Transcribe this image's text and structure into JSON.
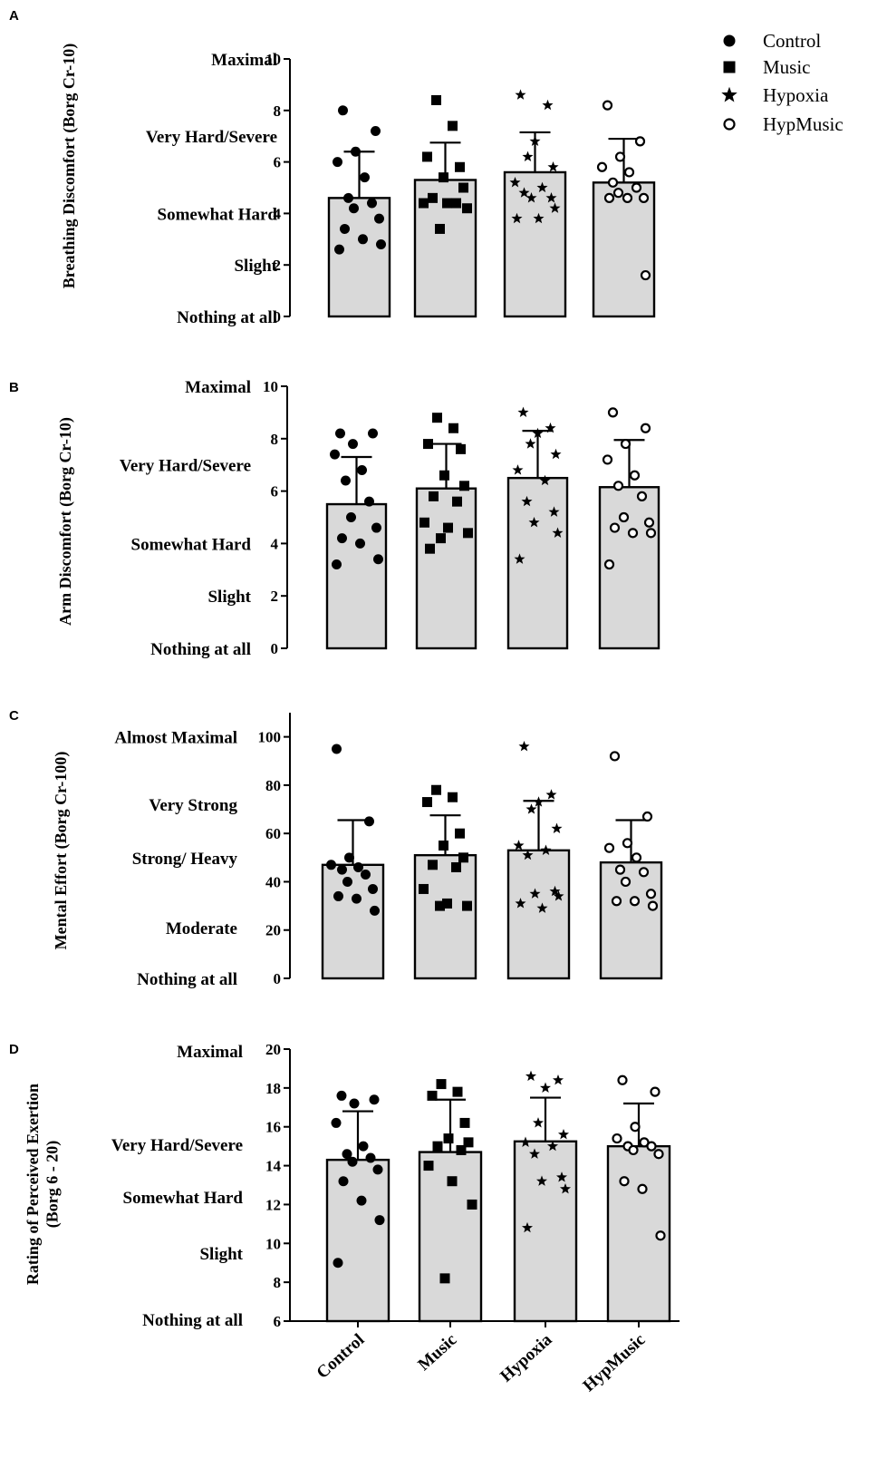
{
  "legend": {
    "placement": "top-right",
    "items": [
      {
        "label": "Control",
        "marker": "circle-filled"
      },
      {
        "label": "Music",
        "marker": "square-filled"
      },
      {
        "label": "Hypoxia",
        "marker": "star-filled"
      },
      {
        "label": "HypMusic",
        "marker": "circle-open"
      }
    ]
  },
  "chart_data": [
    {
      "type": "bar",
      "panel": "A",
      "ylabel": "Breathing Discomfort (Borg Cr-10)",
      "xlabel": "",
      "ylim": [
        0,
        10
      ],
      "yticks": [
        0,
        2,
        4,
        6,
        8,
        10
      ],
      "scale_labels": [
        {
          "value": 10,
          "label": "Maximal"
        },
        {
          "value": 7,
          "label": "Very Hard/Severe"
        },
        {
          "value": 4,
          "label": "Somewhat Hard"
        },
        {
          "value": 2,
          "label": "Slight"
        },
        {
          "value": 0,
          "label": "Nothing at all"
        }
      ],
      "categories": [
        "Control",
        "Music",
        "Hypoxia",
        "HypMusic"
      ],
      "show_category_labels": false,
      "bar_color": "#d9d9d9",
      "means": [
        4.6,
        5.3,
        5.6,
        5.2
      ],
      "sd": [
        1.8,
        1.45,
        1.55,
        1.7
      ],
      "points": [
        [
          8.0,
          7.2,
          6.4,
          6.0,
          5.4,
          4.6,
          4.4,
          4.2,
          3.8,
          3.4,
          3.0,
          2.8,
          2.6
        ],
        [
          8.4,
          7.4,
          6.2,
          5.8,
          5.4,
          5.0,
          4.6,
          4.4,
          4.4,
          4.4,
          4.2,
          3.4
        ],
        [
          8.6,
          8.2,
          6.8,
          6.2,
          5.8,
          5.2,
          5.0,
          4.8,
          4.6,
          4.6,
          4.2,
          3.8,
          3.8
        ],
        [
          8.2,
          6.8,
          6.2,
          5.8,
          5.6,
          5.2,
          5.0,
          4.8,
          4.6,
          4.6,
          4.6,
          1.6
        ]
      ]
    },
    {
      "type": "bar",
      "panel": "B",
      "ylabel": "Arm Discomfort (Borg Cr-10)",
      "xlabel": "",
      "ylim": [
        0,
        10
      ],
      "yticks": [
        0,
        2,
        4,
        6,
        8,
        10
      ],
      "scale_labels": [
        {
          "value": 10,
          "label": "Maximal"
        },
        {
          "value": 7,
          "label": "Very Hard/Severe"
        },
        {
          "value": 4,
          "label": "Somewhat Hard"
        },
        {
          "value": 2,
          "label": "Slight"
        },
        {
          "value": 0,
          "label": "Nothing at all"
        }
      ],
      "categories": [
        "Control",
        "Music",
        "Hypoxia",
        "HypMusic"
      ],
      "show_category_labels": false,
      "bar_color": "#d9d9d9",
      "means": [
        5.5,
        6.1,
        6.5,
        6.15
      ],
      "sd": [
        1.8,
        1.7,
        1.8,
        1.8
      ],
      "points": [
        [
          8.2,
          8.2,
          7.8,
          7.4,
          6.8,
          6.4,
          5.6,
          5.0,
          4.6,
          4.2,
          4.0,
          3.4,
          3.2
        ],
        [
          8.8,
          8.4,
          7.8,
          7.6,
          6.6,
          6.2,
          5.8,
          5.6,
          4.8,
          4.6,
          4.4,
          4.2,
          3.8
        ],
        [
          9.0,
          8.4,
          8.2,
          7.8,
          7.4,
          6.8,
          6.4,
          5.6,
          5.2,
          4.8,
          4.4,
          3.4
        ],
        [
          9.0,
          8.4,
          7.8,
          7.2,
          6.6,
          6.2,
          5.8,
          5.0,
          4.8,
          4.6,
          4.4,
          4.4,
          3.2
        ]
      ]
    },
    {
      "type": "bar",
      "panel": "C",
      "ylabel": "Mental Effort (Borg Cr-100)",
      "xlabel": "",
      "ylim": [
        0,
        110
      ],
      "yticks": [
        0,
        20,
        40,
        60,
        80,
        100
      ],
      "scale_labels": [
        {
          "value": 100,
          "label": "Almost Maximal"
        },
        {
          "value": 72,
          "label": "Very Strong"
        },
        {
          "value": 50,
          "label": "Strong/ Heavy"
        },
        {
          "value": 21,
          "label": "Moderate"
        },
        {
          "value": 0,
          "label": "Nothing at all"
        }
      ],
      "categories": [
        "Control",
        "Music",
        "Hypoxia",
        "HypMusic"
      ],
      "show_category_labels": false,
      "bar_color": "#d9d9d9",
      "means": [
        47,
        51,
        53,
        48
      ],
      "sd": [
        18.5,
        16.5,
        20.5,
        17.5
      ],
      "points": [
        [
          95,
          65,
          50,
          47,
          46,
          45,
          43,
          40,
          37,
          34,
          33,
          28
        ],
        [
          78,
          75,
          73,
          60,
          55,
          50,
          47,
          46,
          37,
          31,
          30,
          30
        ],
        [
          96,
          76,
          73,
          70,
          62,
          55,
          53,
          51,
          36,
          35,
          34,
          31,
          29
        ],
        [
          92,
          67,
          56,
          54,
          50,
          45,
          44,
          40,
          35,
          32,
          32,
          30
        ]
      ]
    },
    {
      "type": "bar",
      "panel": "D",
      "ylabel": "Rating of Perceived Exertion\n(Borg 6 - 20)",
      "xlabel": "",
      "ylim": [
        6,
        20
      ],
      "yticks": [
        6,
        8,
        10,
        12,
        14,
        16,
        18,
        20
      ],
      "scale_labels": [
        {
          "value": 19.9,
          "label": "Maximal"
        },
        {
          "value": 15.1,
          "label": "Very Hard/Severe"
        },
        {
          "value": 12.4,
          "label": "Somewhat Hard"
        },
        {
          "value": 9.5,
          "label": "Slight"
        },
        {
          "value": 6.1,
          "label": "Nothing at all"
        }
      ],
      "categories": [
        "Control",
        "Music",
        "Hypoxia",
        "HypMusic"
      ],
      "show_category_labels": true,
      "bar_color": "#d9d9d9",
      "means": [
        14.3,
        14.7,
        15.25,
        15.0
      ],
      "sd": [
        2.5,
        2.7,
        2.25,
        2.2
      ],
      "points": [
        [
          17.6,
          17.4,
          17.2,
          16.2,
          15.0,
          14.6,
          14.4,
          14.2,
          13.8,
          13.2,
          12.2,
          11.2,
          9.0
        ],
        [
          18.2,
          17.8,
          17.6,
          16.2,
          15.4,
          15.2,
          15.0,
          14.8,
          14.0,
          13.2,
          12.0,
          8.2
        ],
        [
          18.6,
          18.4,
          18.0,
          16.2,
          15.6,
          15.2,
          15.0,
          14.6,
          13.4,
          13.2,
          12.8,
          10.8
        ],
        [
          18.4,
          17.8,
          16.0,
          15.4,
          15.2,
          15.0,
          15.0,
          14.8,
          14.6,
          13.2,
          12.8,
          10.4
        ]
      ]
    }
  ]
}
